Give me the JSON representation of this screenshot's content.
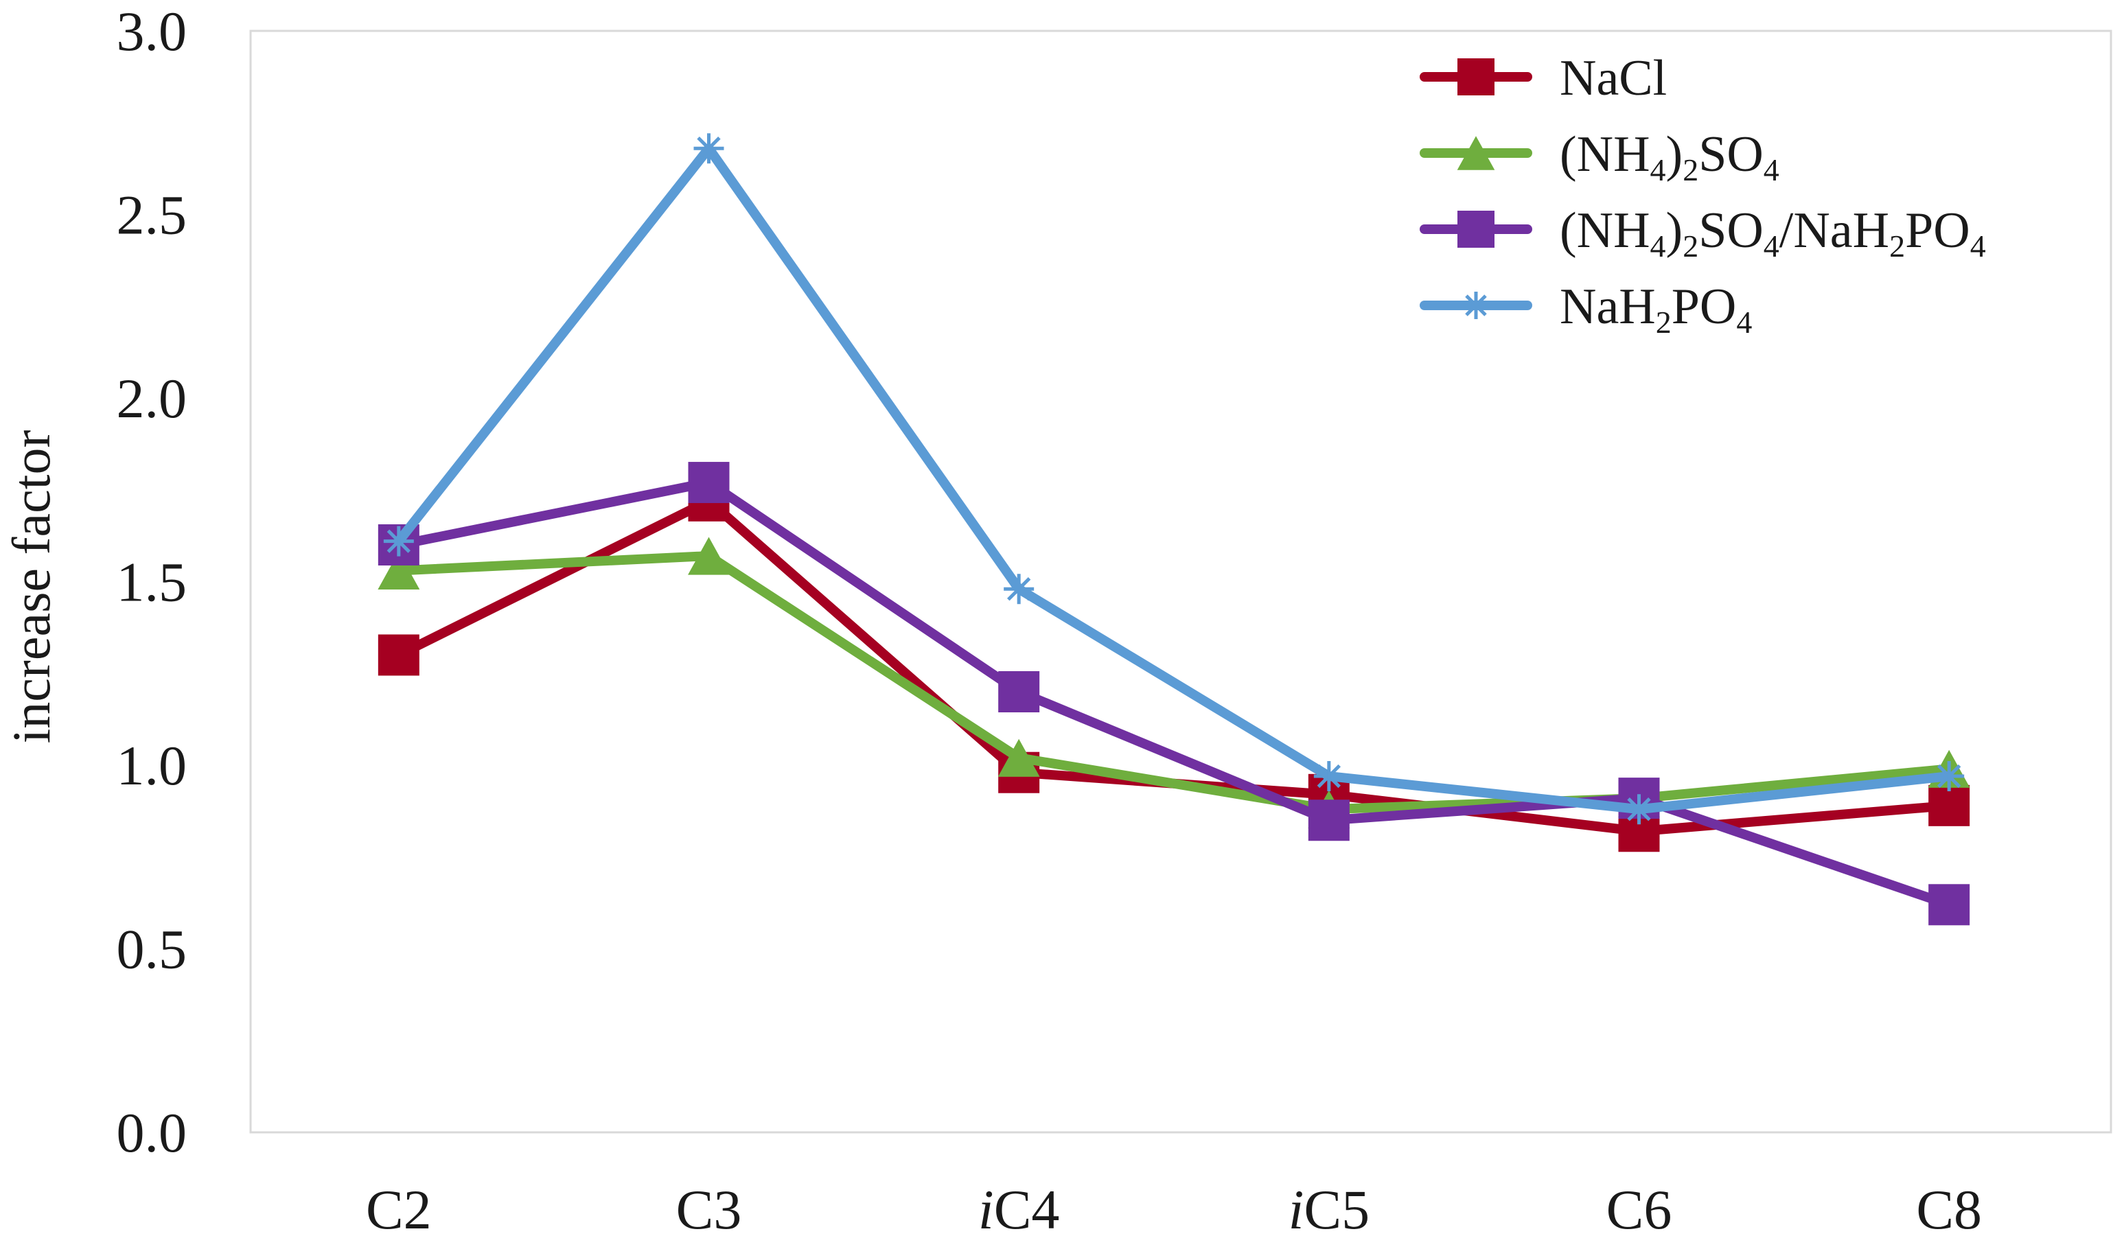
{
  "chart_data": {
    "type": "line",
    "title": "",
    "xlabel": "",
    "ylabel": "increase factor",
    "ylim": [
      0,
      3.0
    ],
    "yticks": [
      "0.0",
      "0.5",
      "1.0",
      "1.5",
      "2.0",
      "2.5",
      "3.0"
    ],
    "ytick_values": [
      0,
      0.5,
      1.0,
      1.5,
      2.0,
      2.5,
      3.0
    ],
    "grid": false,
    "legend_position": "top-right",
    "categories": [
      {
        "prefix": "",
        "base": "C2"
      },
      {
        "prefix": "",
        "base": "C3"
      },
      {
        "prefix": "i",
        "base": "C4"
      },
      {
        "prefix": "i",
        "base": "C5"
      },
      {
        "prefix": "",
        "base": "C6"
      },
      {
        "prefix": "",
        "base": "C8"
      }
    ],
    "series": [
      {
        "name": "NaCl",
        "color": "#a50021",
        "marker": "square",
        "label_parts": [
          {
            "t": "NaCl",
            "sub": false
          }
        ],
        "values": [
          1.3,
          1.72,
          0.98,
          0.92,
          0.82,
          0.89
        ]
      },
      {
        "name": "(NH4)2SO4",
        "color": "#6fae3e",
        "marker": "triangle",
        "label_parts": [
          {
            "t": "(NH",
            "sub": false
          },
          {
            "t": "4",
            "sub": true
          },
          {
            "t": ")",
            "sub": false
          },
          {
            "t": "2",
            "sub": true
          },
          {
            "t": "SO",
            "sub": false
          },
          {
            "t": "4",
            "sub": true
          }
        ],
        "values": [
          1.53,
          1.57,
          1.02,
          0.88,
          0.91,
          0.99
        ]
      },
      {
        "name": "(NH4)2SO4/NaH2PO4",
        "color": "#7030a0",
        "marker": "square",
        "label_parts": [
          {
            "t": "(NH",
            "sub": false
          },
          {
            "t": "4",
            "sub": true
          },
          {
            "t": ")",
            "sub": false
          },
          {
            "t": "2",
            "sub": true
          },
          {
            "t": "SO",
            "sub": false
          },
          {
            "t": "4",
            "sub": true
          },
          {
            "t": "/NaH",
            "sub": false
          },
          {
            "t": "2",
            "sub": true
          },
          {
            "t": "PO",
            "sub": false
          },
          {
            "t": "4",
            "sub": true
          }
        ],
        "values": [
          1.6,
          1.77,
          1.2,
          0.85,
          0.91,
          0.62
        ]
      },
      {
        "name": "NaH2PO4",
        "color": "#5b9bd5",
        "marker": "asterisk",
        "label_parts": [
          {
            "t": "NaH",
            "sub": false
          },
          {
            "t": "2",
            "sub": true
          },
          {
            "t": "PO",
            "sub": false
          },
          {
            "t": "4",
            "sub": true
          }
        ],
        "values": [
          1.61,
          2.68,
          1.48,
          0.97,
          0.88,
          0.97
        ]
      }
    ]
  }
}
